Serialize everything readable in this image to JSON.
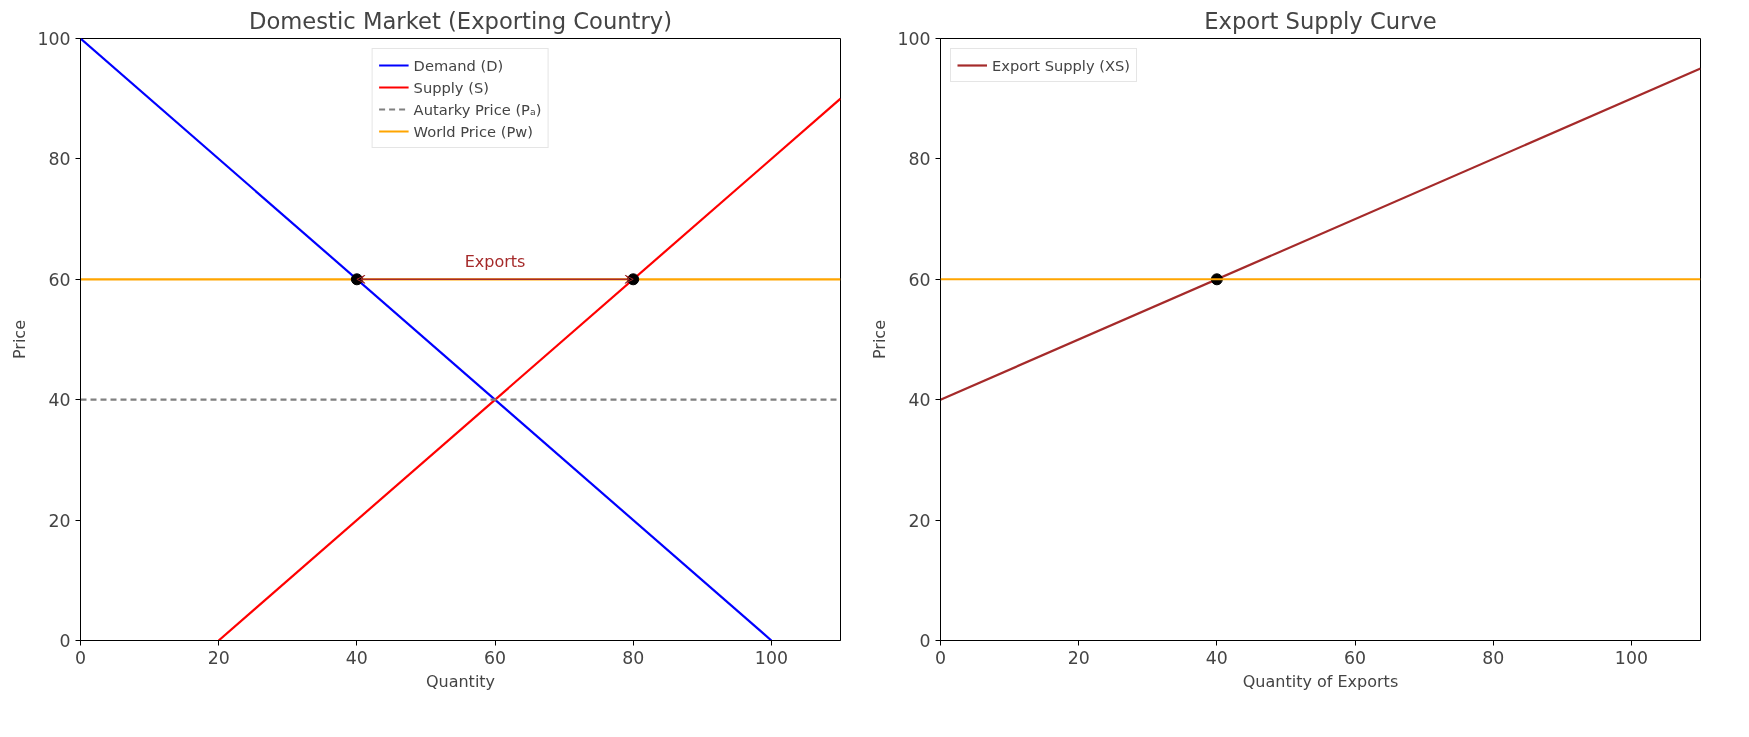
{
  "chart_data": [
    {
      "type": "line",
      "title": "Domestic Market (Exporting Country)",
      "xlabel": "Quantity",
      "ylabel": "Price",
      "xlim": [
        0,
        110
      ],
      "ylim": [
        0,
        100
      ],
      "xticks": [
        0,
        20,
        40,
        60,
        80,
        100
      ],
      "yticks": [
        0,
        20,
        40,
        60,
        80,
        100
      ],
      "grid": false,
      "legend": "top",
      "marker": "none",
      "annotations": [
        {
          "text": "Exports",
          "x": 60,
          "y": 60
        }
      ],
      "series": [
        {
          "name": "Demand (D)",
          "color": "#0000ff",
          "x": [
            0,
            100
          ],
          "values": [
            100,
            0
          ]
        },
        {
          "name": "Supply (S)",
          "color": "#ff0000",
          "x": [
            20,
            110
          ],
          "values": [
            0,
            90
          ]
        },
        {
          "name": "Autarky Price (Pₐ)",
          "color": "#808080",
          "x": [
            0,
            110
          ],
          "values": [
            40,
            40
          ],
          "line_style": "dashed"
        },
        {
          "name": "World Price (Pw)",
          "color": "#ffa500",
          "x": [
            0,
            110
          ],
          "values": [
            60,
            60
          ]
        },
        {
          "type": "scatter",
          "color": "#000000",
          "x": [
            40,
            80
          ],
          "values": [
            60,
            60
          ],
          "marker": "circle"
        }
      ]
    },
    {
      "type": "line",
      "title": "Export Supply Curve",
      "xlabel": "Quantity of Exports",
      "ylabel": "Price",
      "xlim": [
        0,
        110
      ],
      "ylim": [
        0,
        100
      ],
      "xticks": [
        0,
        20,
        40,
        60,
        80,
        100
      ],
      "yticks": [
        0,
        20,
        40,
        60,
        80,
        100
      ],
      "grid": false,
      "legend": "top left",
      "marker": "none",
      "ref_lines": [
        {
          "axis": "y",
          "value": 60,
          "color": "#ffa500"
        }
      ],
      "series": [
        {
          "name": "Export Supply (XS)",
          "color": "#a52a2a",
          "x": [
            0,
            110
          ],
          "values": [
            40,
            95
          ]
        },
        {
          "type": "scatter",
          "color": "#000000",
          "x": [
            40
          ],
          "values": [
            60
          ],
          "marker": "circle"
        }
      ]
    }
  ]
}
